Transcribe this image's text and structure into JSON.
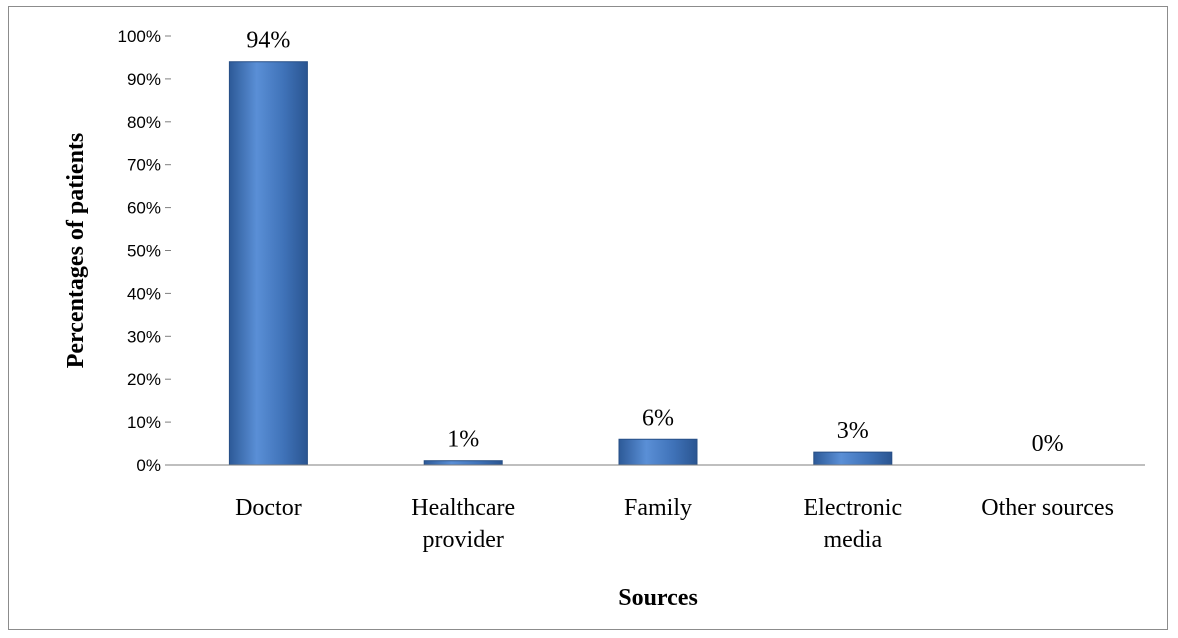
{
  "chart_data": {
    "type": "bar",
    "title": "",
    "xlabel": "Sources",
    "ylabel": "Percentages of patients",
    "categories": [
      [
        "Doctor"
      ],
      [
        "Healthcare",
        "provider"
      ],
      [
        "Family"
      ],
      [
        "Electronic",
        "media"
      ],
      [
        "Other sources"
      ]
    ],
    "values": [
      94,
      1,
      6,
      3,
      0
    ],
    "data_labels": [
      "94%",
      "1%",
      "6%",
      "3%",
      "0%"
    ],
    "yticks": [
      "0%",
      "10%",
      "20%",
      "30%",
      "40%",
      "50%",
      "60%",
      "70%",
      "80%",
      "90%",
      "100%"
    ],
    "ylim": [
      0,
      100
    ],
    "grid": false,
    "legend": "none",
    "bar_color": "#3f72b8",
    "bar_edge_color": "#274f86"
  }
}
